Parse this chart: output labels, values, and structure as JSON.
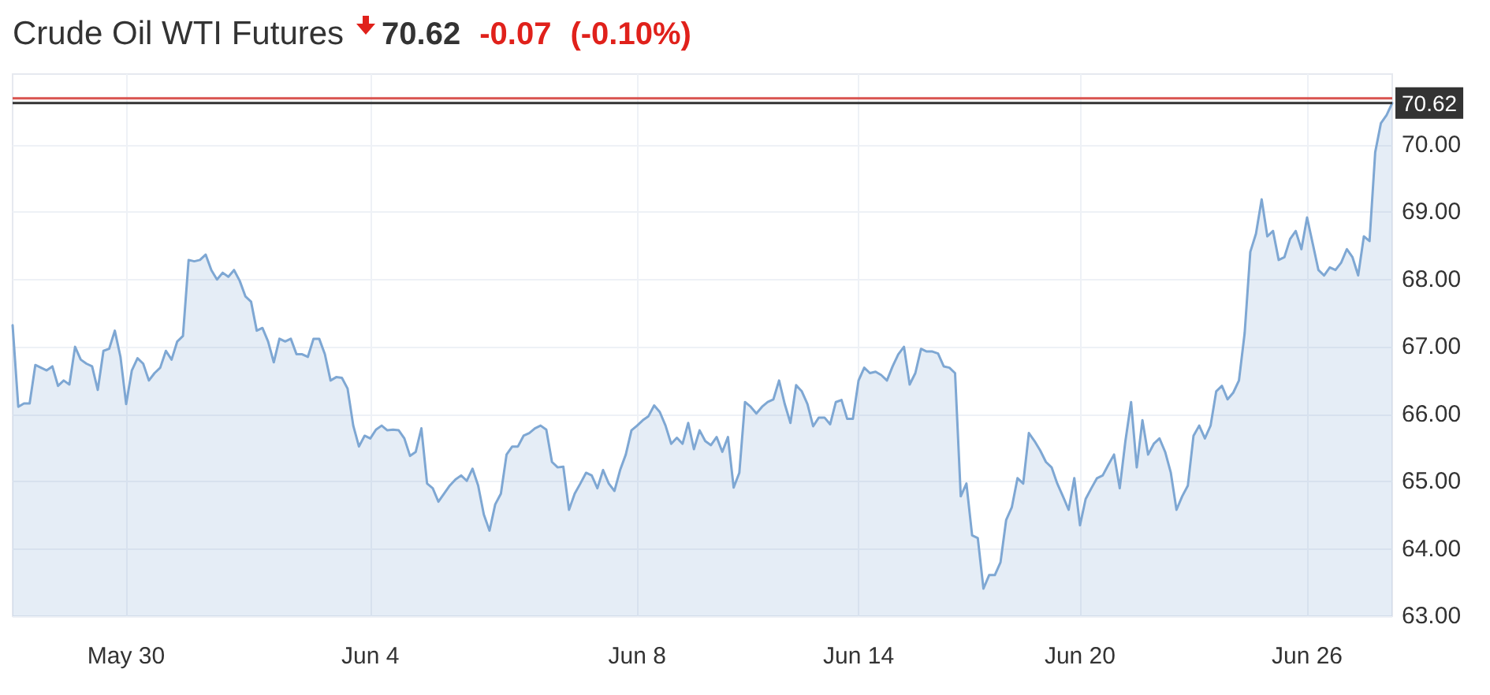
{
  "chart_data": {
    "type": "area",
    "title": "Crude Oil WTI Futures",
    "annotations": [
      "70.62",
      "-0.07",
      "(-0.10%)"
    ],
    "categories": [
      null,
      null,
      null,
      null,
      null,
      null,
      null,
      null,
      null,
      null,
      null,
      null,
      null,
      null,
      null,
      null,
      null,
      null,
      null,
      null,
      "May 30",
      null,
      null,
      null,
      null,
      null,
      null,
      null,
      null,
      null,
      null,
      null,
      null,
      null,
      null,
      null,
      null,
      null,
      null,
      null,
      null,
      null,
      null,
      null,
      null,
      null,
      null,
      null,
      null,
      null,
      null,
      null,
      null,
      null,
      null,
      null,
      null,
      null,
      null,
      null,
      null,
      null,
      null,
      "Jun 4",
      null,
      null,
      null,
      null,
      null,
      null,
      null,
      null,
      null,
      null,
      null,
      null,
      null,
      null,
      null,
      null,
      null,
      null,
      null,
      null,
      null,
      null,
      null,
      null,
      null,
      null,
      null,
      null,
      null,
      null,
      null,
      null,
      null,
      null,
      null,
      null,
      null,
      null,
      null,
      null,
      null,
      null,
      null,
      null,
      null,
      null,
      "Jun 8",
      null,
      null,
      null,
      null,
      null,
      null,
      null,
      null,
      null,
      null,
      null,
      null,
      null,
      null,
      null,
      null,
      null,
      null,
      null,
      null,
      null,
      null,
      null,
      null,
      null,
      null,
      null,
      null,
      null,
      null,
      null,
      null,
      null,
      null,
      null,
      null,
      null,
      null,
      "Jun 14",
      null,
      null,
      null,
      null,
      null,
      null,
      null,
      null,
      null,
      null,
      null,
      null,
      null,
      null,
      null,
      null,
      null,
      null,
      null,
      null,
      null,
      null,
      null,
      null,
      null,
      null,
      null,
      null,
      null,
      null,
      null,
      null,
      null,
      null,
      null,
      null,
      null,
      null,
      "Jun 20",
      null,
      null,
      null,
      null,
      null,
      null,
      null,
      null,
      null,
      null,
      null,
      null,
      null,
      null,
      null,
      null,
      null,
      null,
      null,
      null,
      null,
      null,
      null,
      null,
      null,
      null,
      null,
      null,
      null,
      null,
      null,
      null,
      null,
      null,
      null,
      null,
      null,
      null,
      null,
      "Jun 26",
      null,
      null,
      null,
      null,
      null,
      null,
      null,
      null,
      null,
      null,
      null,
      null,
      null,
      null,
      null
    ],
    "series": [
      {
        "color": "#7ea7d3",
        "values": [
          67.32,
          66.11,
          66.16,
          66.16,
          66.73,
          66.69,
          66.65,
          66.71,
          66.42,
          66.5,
          66.44,
          67.0,
          66.81,
          66.75,
          66.71,
          66.36,
          66.94,
          66.97,
          67.24,
          66.85,
          66.15,
          66.65,
          66.83,
          66.75,
          66.5,
          66.61,
          66.69,
          66.94,
          66.81,
          67.08,
          67.16,
          68.29,
          68.27,
          68.29,
          68.37,
          68.14,
          68.0,
          68.1,
          68.04,
          68.14,
          67.98,
          67.75,
          67.67,
          67.24,
          67.28,
          67.08,
          66.77,
          67.12,
          67.08,
          67.12,
          66.89,
          66.89,
          66.85,
          67.12,
          67.12,
          66.89,
          66.5,
          66.55,
          66.54,
          66.38,
          65.83,
          65.52,
          65.68,
          65.64,
          65.77,
          65.83,
          65.76,
          65.77,
          65.76,
          65.64,
          65.38,
          65.44,
          65.79,
          64.97,
          64.9,
          64.7,
          64.82,
          64.94,
          65.03,
          65.09,
          65.01,
          65.19,
          64.94,
          64.51,
          64.27,
          64.66,
          64.82,
          65.4,
          65.52,
          65.52,
          65.68,
          65.72,
          65.79,
          65.83,
          65.77,
          65.29,
          65.21,
          65.22,
          64.58,
          64.82,
          64.97,
          65.13,
          65.09,
          64.9,
          65.17,
          64.97,
          64.86,
          65.17,
          65.4,
          65.76,
          65.83,
          65.91,
          65.97,
          66.13,
          66.03,
          65.83,
          65.56,
          65.65,
          65.56,
          65.87,
          65.48,
          65.76,
          65.6,
          65.54,
          65.66,
          65.44,
          65.66,
          64.91,
          65.13,
          66.18,
          66.11,
          66.01,
          66.11,
          66.18,
          66.22,
          66.5,
          66.15,
          65.87,
          66.43,
          66.34,
          66.15,
          65.82,
          65.95,
          65.95,
          65.85,
          66.18,
          66.21,
          65.93,
          65.93,
          66.5,
          66.69,
          66.61,
          66.63,
          66.58,
          66.5,
          66.71,
          66.89,
          67.0,
          66.44,
          66.61,
          66.97,
          66.93,
          66.93,
          66.9,
          66.71,
          66.69,
          66.61,
          64.78,
          64.97,
          64.2,
          64.16,
          63.41,
          63.61,
          63.61,
          63.8,
          64.43,
          64.62,
          65.05,
          64.97,
          65.72,
          65.6,
          65.46,
          65.29,
          65.21,
          64.97,
          64.78,
          64.58,
          65.05,
          64.35,
          64.74,
          64.9,
          65.05,
          65.09,
          65.25,
          65.4,
          64.9,
          65.6,
          66.18,
          65.21,
          65.91,
          65.4,
          65.56,
          65.64,
          65.44,
          65.13,
          64.58,
          64.78,
          64.94,
          65.68,
          65.83,
          65.64,
          65.83,
          66.34,
          66.42,
          66.22,
          66.32,
          66.5,
          67.2,
          68.41,
          68.68,
          69.19,
          68.64,
          68.72,
          68.29,
          68.33,
          68.6,
          68.72,
          68.45,
          68.92,
          68.53,
          68.14,
          68.06,
          68.18,
          68.14,
          68.25,
          68.45,
          68.33,
          68.06,
          68.64,
          68.57,
          69.89,
          70.32,
          70.44,
          70.62
        ]
      }
    ],
    "ylim": [
      63,
      71.05
    ],
    "yticks": [
      {
        "value": 63,
        "label": "63.00"
      },
      {
        "value": 64,
        "label": "64.00"
      },
      {
        "value": 65,
        "label": "65.00"
      },
      {
        "value": 66,
        "label": "66.00"
      },
      {
        "value": 67,
        "label": "67.00"
      },
      {
        "value": 68,
        "label": "68.00"
      },
      {
        "value": 69,
        "label": "69.00"
      },
      {
        "value": 70,
        "label": "70.00"
      }
    ],
    "ref_lines": [
      {
        "axis": "y",
        "value": 70.69,
        "color": "#d9534f"
      },
      {
        "axis": "y",
        "value": 70.62,
        "label": "70.62",
        "color": "#333333"
      }
    ],
    "grid": true,
    "marker": "none",
    "line_style": "solid"
  }
}
